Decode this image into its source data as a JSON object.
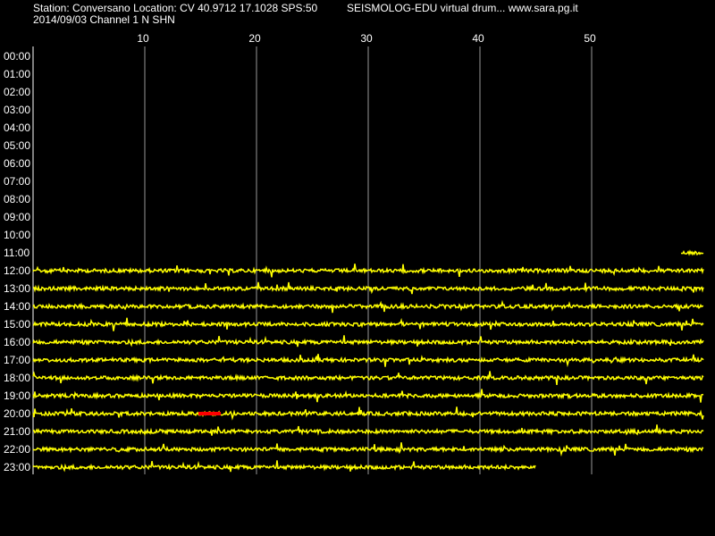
{
  "header": {
    "station": "Station: Conversano Location: CV 40.9712 17.1028 SPS:50",
    "title": "SEISMOLOG-EDU virtual drum... www.sara.pg.it",
    "channel": "2014/09/03  Channel 1 N SHN"
  },
  "x_axis": {
    "min": 0,
    "max": 60,
    "ticks": [
      10,
      20,
      30,
      40,
      50
    ]
  },
  "rows": [
    "00:00",
    "01:00",
    "02:00",
    "03:00",
    "04:00",
    "05:00",
    "06:00",
    "07:00",
    "08:00",
    "09:00",
    "10:00",
    "11:00",
    "12:00",
    "13:00",
    "14:00",
    "15:00",
    "16:00",
    "17:00",
    "18:00",
    "19:00",
    "20:00",
    "21:00",
    "22:00",
    "23:00"
  ],
  "trace_color": "#ffff00",
  "traces": [
    {
      "row": 11,
      "start": 58,
      "end": 60
    },
    {
      "row": 12,
      "start": 0,
      "end": 60
    },
    {
      "row": 13,
      "start": 0,
      "end": 60
    },
    {
      "row": 14,
      "start": 0,
      "end": 60
    },
    {
      "row": 15,
      "start": 0,
      "end": 60
    },
    {
      "row": 16,
      "start": 0,
      "end": 60
    },
    {
      "row": 17,
      "start": 0,
      "end": 60
    },
    {
      "row": 18,
      "start": 0,
      "end": 60
    },
    {
      "row": 19,
      "start": 0,
      "end": 60
    },
    {
      "row": 20,
      "start": 0,
      "end": 60
    },
    {
      "row": 21,
      "start": 0,
      "end": 60
    },
    {
      "row": 22,
      "start": 0,
      "end": 60
    },
    {
      "row": 23,
      "start": 0,
      "end": 45
    }
  ],
  "event": {
    "row": 20,
    "start": 14.8,
    "end": 16.8,
    "color": "#ff0000"
  }
}
